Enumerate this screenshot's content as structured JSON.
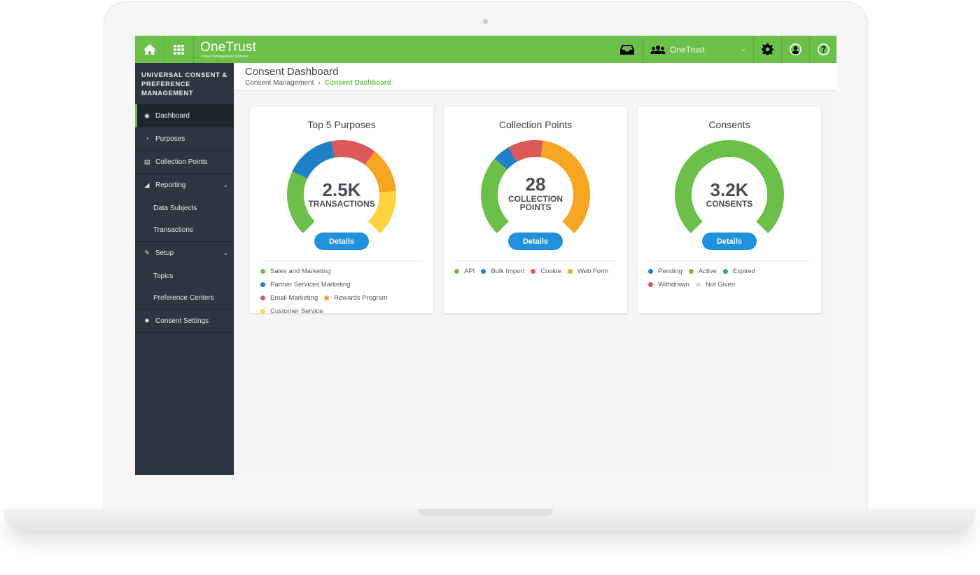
{
  "topbar": {
    "brand": "OneTrust",
    "tagline": "Privacy Management Software",
    "org": "OneTrust",
    "accent": "#6cc04a"
  },
  "sidebar": {
    "title": "UNIVERSAL CONSENT & PREFERENCE MANAGEMENT",
    "items": [
      {
        "label": "Dashboard",
        "icon": "dashboard-icon"
      },
      {
        "label": "Purposes",
        "icon": "pie-icon"
      },
      {
        "label": "Collection Points",
        "icon": "list-icon"
      },
      {
        "label": "Reporting",
        "icon": "area-chart-icon"
      },
      {
        "label": "Data Subjects"
      },
      {
        "label": "Transactions"
      },
      {
        "label": "Setup",
        "icon": "wrench-icon"
      },
      {
        "label": "Topics"
      },
      {
        "label": "Preference Centers"
      },
      {
        "label": "Consent Settings",
        "icon": "gear-icon"
      }
    ]
  },
  "header": {
    "title": "Consent Dashboard",
    "breadcrumb": [
      "Consent Management",
      "Consent Dashboard"
    ]
  },
  "cards": [
    {
      "title": "Top 5 Purposes",
      "value": "2.5K",
      "unit": "TRANSACTIONS",
      "button": "Details",
      "legend": [
        {
          "label": "Sales and Marketing",
          "color": "#6cc04a"
        },
        {
          "label": "Partner Services Marketing",
          "color": "#1f7fc8"
        },
        {
          "label": "Email Marketing",
          "color": "#dd5859"
        },
        {
          "label": "Rewards Program",
          "color": "#f7a623"
        },
        {
          "label": "Customer Service",
          "color": "#fdd43f"
        }
      ]
    },
    {
      "title": "Collection Points",
      "value": "28",
      "unit_line1": "COLLECTION",
      "unit_line2": "POINTS",
      "button": "Details",
      "legend": [
        {
          "label": "API",
          "color": "#6cc04a"
        },
        {
          "label": "Bulk Import",
          "color": "#1f7fc8"
        },
        {
          "label": "Cookie",
          "color": "#dd5859"
        },
        {
          "label": "Web Form",
          "color": "#f7a623"
        }
      ]
    },
    {
      "title": "Consents",
      "value": "3.2K",
      "unit": "CONSENTS",
      "button": "Details",
      "legend": [
        {
          "label": "Pending",
          "color": "#1f7fc8"
        },
        {
          "label": "Active",
          "color": "#6cc04a"
        },
        {
          "label": "Expired",
          "color": "#2aa2a0"
        },
        {
          "label": "Withdrawn",
          "color": "#dd5859"
        },
        {
          "label": "Not Given",
          "color": "#dddddd"
        }
      ]
    }
  ],
  "chart_data": [
    {
      "type": "pie",
      "title": "Top 5 Purposes",
      "categories": [
        "Sales and Marketing",
        "Partner Services Marketing",
        "Email Marketing",
        "Rewards Program",
        "Customer Service"
      ],
      "values": [
        26,
        20,
        18,
        18,
        18
      ],
      "colors": [
        "#6cc04a",
        "#1f7fc8",
        "#dd5859",
        "#f7a623",
        "#fdd43f"
      ]
    },
    {
      "type": "pie",
      "title": "Collection Points",
      "categories": [
        "API",
        "Bulk Import",
        "Cookie",
        "Web Form"
      ],
      "values": [
        32,
        7,
        14,
        47
      ],
      "colors": [
        "#6cc04a",
        "#1f7fc8",
        "#dd5859",
        "#f7a623"
      ]
    },
    {
      "type": "pie",
      "title": "Consents",
      "categories": [
        "Active"
      ],
      "values": [
        100
      ],
      "colors": [
        "#6cc04a"
      ]
    }
  ]
}
